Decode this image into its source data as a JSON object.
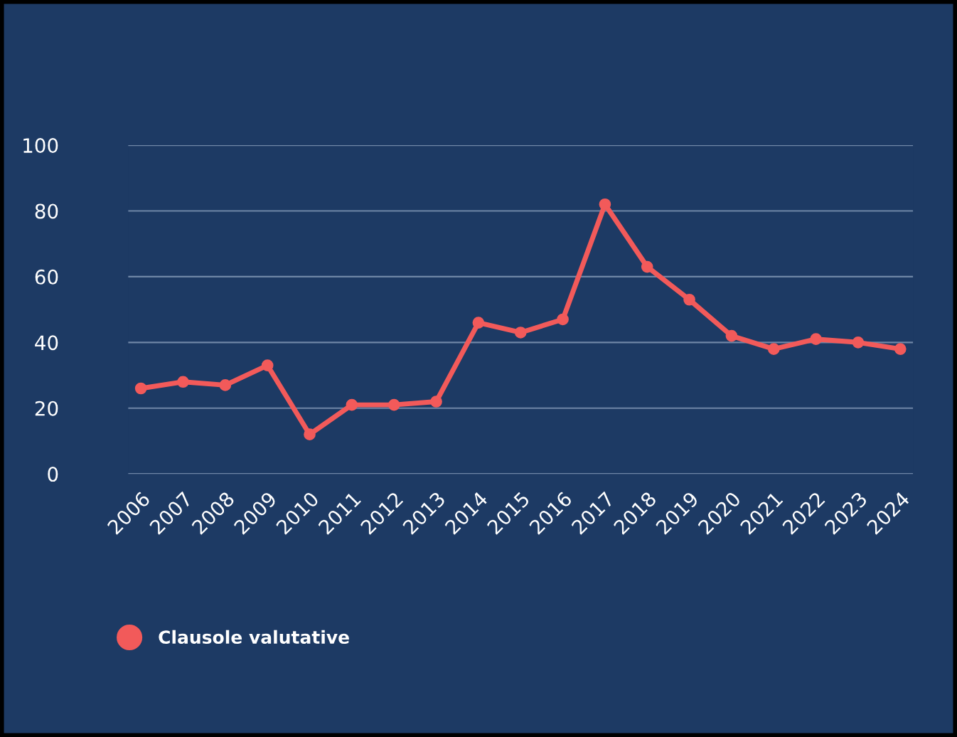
{
  "chart_data": {
    "type": "line",
    "categories": [
      "2006",
      "2007",
      "2008",
      "2009",
      "2010",
      "2011",
      "2012",
      "2013",
      "2014",
      "2015",
      "2016",
      "2017",
      "2018",
      "2019",
      "2020",
      "2021",
      "2022",
      "2023",
      "2024"
    ],
    "series": [
      {
        "name": "Clausole valutative",
        "color": "#f25a5a",
        "values": [
          26,
          28,
          27,
          33,
          12,
          21,
          21,
          22,
          46,
          43,
          47,
          82,
          63,
          53,
          42,
          38,
          41,
          40,
          38
        ]
      }
    ],
    "ylim": [
      0,
      100
    ],
    "yticks": [
      0,
      20,
      40,
      60,
      80,
      100
    ],
    "grid": "y",
    "legend": "bottom left",
    "marker": "circle",
    "line_style": "solid"
  }
}
